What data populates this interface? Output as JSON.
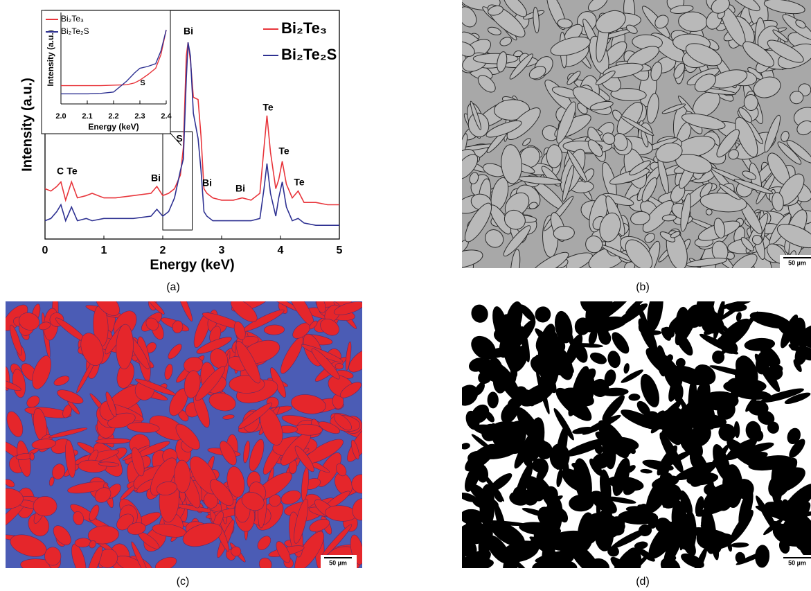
{
  "chart_data": [
    {
      "type": "line",
      "xlabel": "Energy (keV)",
      "ylabel": "Intensity (a.u.)",
      "x": [
        0,
        0.1,
        0.2,
        0.27,
        0.35,
        0.45,
        0.55,
        0.7,
        0.8,
        1.0,
        1.2,
        1.5,
        1.8,
        1.9,
        2.0,
        2.1,
        2.2,
        2.3,
        2.35,
        2.4,
        2.43,
        2.47,
        2.52,
        2.6,
        2.65,
        2.7,
        2.75,
        2.85,
        3.0,
        3.2,
        3.35,
        3.5,
        3.65,
        3.72,
        3.77,
        3.83,
        3.92,
        3.97,
        4.03,
        4.1,
        4.2,
        4.3,
        4.4,
        4.6,
        4.8,
        5.0
      ],
      "series": [
        {
          "name": "Bi₂Te₃",
          "color": "#e8353b",
          "values": [
            22,
            21,
            23,
            25,
            17,
            25,
            18,
            19,
            20,
            18,
            18,
            19,
            20,
            23,
            19,
            20,
            22,
            28,
            40,
            80,
            86,
            78,
            62,
            61,
            45,
            22,
            20,
            18,
            17,
            17,
            18,
            17,
            20,
            40,
            54,
            38,
            22,
            26,
            34,
            24,
            18,
            21,
            16,
            16,
            15,
            15
          ]
        },
        {
          "name": "Bi₂Te₂S",
          "color": "#2e3192",
          "values": [
            8,
            9,
            12,
            15,
            8,
            14,
            8,
            9,
            8,
            9,
            9,
            9,
            10,
            13,
            10,
            12,
            18,
            30,
            35,
            70,
            86,
            80,
            55,
            44,
            30,
            12,
            10,
            8,
            8,
            8,
            8,
            8,
            9,
            22,
            33,
            20,
            10,
            18,
            25,
            14,
            8,
            9,
            7,
            6,
            6,
            6
          ]
        }
      ],
      "xlim": [
        0,
        5
      ],
      "ylim": [
        0,
        100
      ],
      "xticks": [
        0,
        1,
        2,
        3,
        4,
        5
      ],
      "legend": "upper right",
      "annotations": [
        "C",
        "Te",
        "Bi",
        "Bi",
        "S",
        "Bi",
        "Bi",
        "Te",
        "Te",
        "Te"
      ]
    },
    {
      "type": "line",
      "xlabel": "Energy (keV)",
      "ylabel": "Intensity (a.u.)",
      "x": [
        2.0,
        2.05,
        2.1,
        2.15,
        2.2,
        2.25,
        2.28,
        2.3,
        2.33,
        2.36,
        2.38,
        2.4
      ],
      "series": [
        {
          "name": "Bi₂Te₃",
          "color": "#e8353b",
          "values": [
            2.0,
            2.0,
            2.0,
            2.0,
            2.05,
            2.1,
            2.3,
            2.6,
            3.2,
            3.9,
            5.4,
            8.1
          ]
        },
        {
          "name": "Bi₂Te₂S",
          "color": "#2e3192",
          "values": [
            1.1,
            1.1,
            1.1,
            1.15,
            1.3,
            2.5,
            3.4,
            3.9,
            4.1,
            4.4,
            5.8,
            8.1
          ]
        }
      ],
      "xlim": [
        2.0,
        2.4
      ],
      "ylim": [
        0,
        10
      ],
      "xticks": [
        {
          "value": 2,
          "label": "2.0"
        },
        2.1,
        2.2,
        2.3,
        2.4
      ],
      "legend": "upper left",
      "annotations": [
        "S"
      ]
    }
  ],
  "panels": {
    "labels": [
      "(a)",
      "(b)",
      "(c)",
      "(d)"
    ],
    "scale_bars": [
      "50 µm",
      "50 µm",
      "50 µm"
    ]
  }
}
